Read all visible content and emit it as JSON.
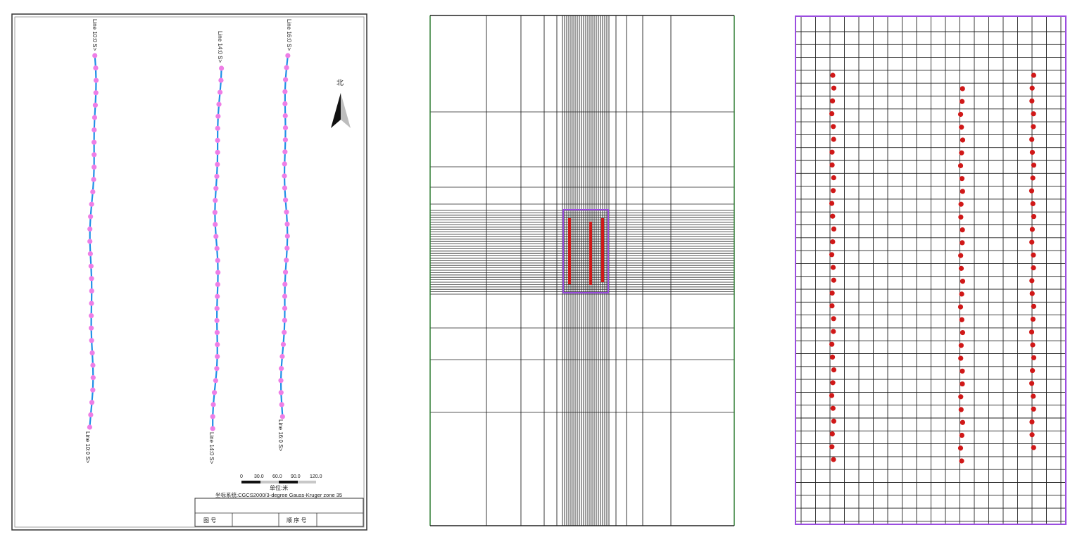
{
  "colors": {
    "survey_line": "#1f8fe6",
    "survey_station": "#ee7ee6",
    "grid_line": "#222222",
    "frame_green": "#2e7d32",
    "purple_outline": "#9b4de0",
    "red_point": "#d01818"
  },
  "panel_map": {
    "line_labels": [
      {
        "line": "Line 10",
        "label": "Line 10:0 S>"
      },
      {
        "line": "Line 14",
        "label": "Line 14:0 S>"
      },
      {
        "line": "Line 16",
        "label": "Line 16:0 S>"
      }
    ],
    "north_label": "北",
    "north_icon": "north-arrow-icon",
    "scale_ticks": [
      "0",
      "30.0",
      "60.0",
      "90.0",
      "120.0"
    ],
    "scale_unit": "单位:米",
    "coord_system": "坐标系统:CGCS2000/3-degree Gauss-Kruger zone 35",
    "title_block": {
      "cell_1": "图      号",
      "cell_2": "顺 序 号"
    }
  },
  "panel_mesh": {
    "description_free": true,
    "survey_lines": 3
  },
  "panel_points": {
    "lines": 3
  }
}
